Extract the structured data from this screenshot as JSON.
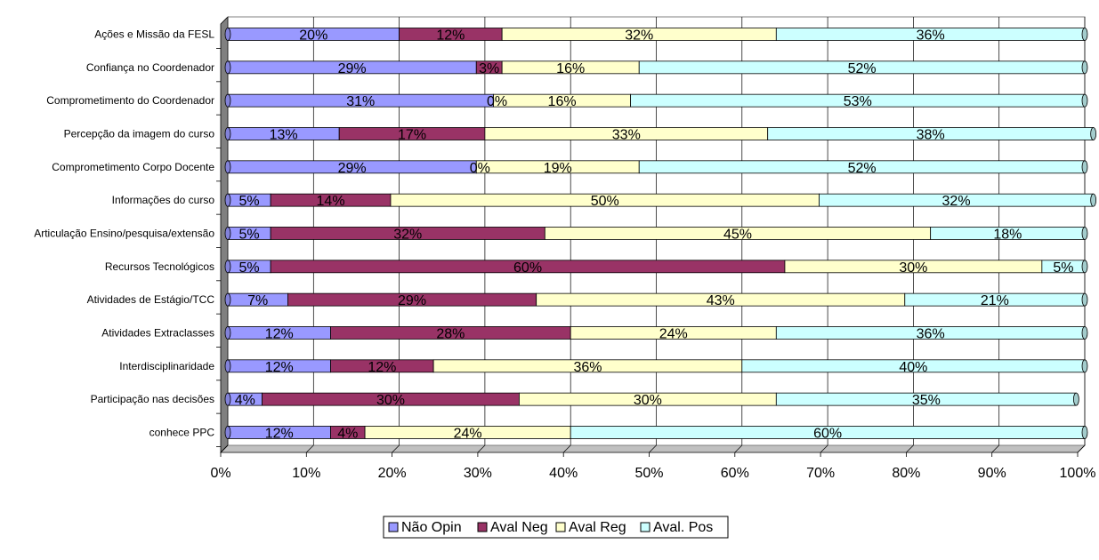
{
  "chart_data": {
    "type": "bar",
    "orientation": "horizontal",
    "stacking": "percent",
    "title": "",
    "xlabel": "",
    "ylabel": "",
    "xlim": [
      0,
      100
    ],
    "x_ticks": [
      "0%",
      "10%",
      "20%",
      "30%",
      "40%",
      "50%",
      "60%",
      "70%",
      "80%",
      "90%",
      "100%"
    ],
    "grid": true,
    "legend_position": "bottom",
    "categories": [
      "Ações e Missão da FESL",
      "Confiança no Coordenador",
      "Comprometimento do Coordenador",
      "Percepção da imagem do curso",
      "Comprometimento Corpo Docente",
      "Informações do curso",
      "Articulação Ensino/pesquisa/extensão",
      "Recursos Tecnológicos",
      "Atividades de Estágio/TCC",
      "Atividades Extraclasses",
      "Interdisciplinaridade",
      "Participação nas decisões",
      "conhece PPC"
    ],
    "series": [
      {
        "name": "Não Opin",
        "color": "#9999ff",
        "values": [
          20,
          29,
          31,
          13,
          29,
          5,
          5,
          5,
          7,
          12,
          12,
          4,
          12
        ],
        "labels": [
          "20%",
          "29%",
          "31%",
          "13%",
          "29%",
          "5%",
          "5%",
          "5%",
          "7%",
          "12%",
          "12%",
          "4%",
          "12%"
        ]
      },
      {
        "name": "Aval Neg",
        "color": "#993366",
        "values": [
          12,
          3,
          0,
          17,
          0,
          14,
          32,
          60,
          29,
          28,
          12,
          30,
          4
        ],
        "labels": [
          "12%",
          "3%",
          "0%",
          "17%",
          "0%",
          "14%",
          "32%",
          "60%",
          "29%",
          "28%",
          "12%",
          "30%",
          "4%"
        ]
      },
      {
        "name": "Aval Reg",
        "color": "#ffffcc",
        "values": [
          32,
          16,
          16,
          33,
          19,
          50,
          45,
          30,
          43,
          24,
          36,
          30,
          24
        ],
        "labels": [
          "32%",
          "16%",
          "16%",
          "33%",
          "19%",
          "50%",
          "45%",
          "30%",
          "43%",
          "24%",
          "36%",
          "30%",
          "24%"
        ]
      },
      {
        "name": "Aval. Pos",
        "color": "#ccffff",
        "values": [
          36,
          52,
          53,
          38,
          52,
          32,
          18,
          5,
          21,
          36,
          40,
          35,
          60
        ],
        "labels": [
          "36%",
          "52%",
          "53%",
          "38%",
          "52%",
          "32%",
          "18%",
          "5%",
          "21%",
          "36%",
          "40%",
          "35%",
          "60%"
        ]
      }
    ]
  }
}
